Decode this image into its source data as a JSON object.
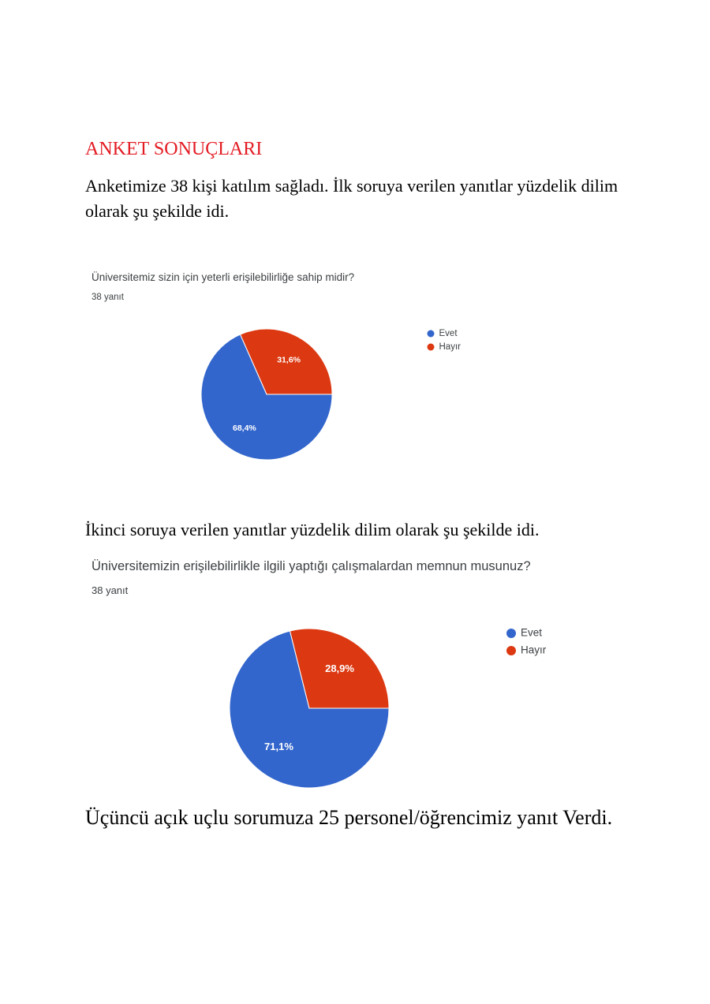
{
  "document": {
    "title": "ANKET SONUÇLARI",
    "title_color": "#e31b23",
    "intro": "Anketimize 38 kişi katılım sağladı. İlk soruya verilen yanıtlar yüzdelik dilim olarak şu şekilde idi.",
    "second_intro": "İkinci soruya verilen yanıtlar yüzdelik dilim olarak şu şekilde idi.",
    "closing": "Üçüncü açık uçlu sorumuza 25 personel/öğrencimiz yanıt Verdi."
  },
  "chart_data": [
    {
      "type": "pie",
      "title": "Üniversitemiz sizin için yeterli erişilebilirliğe sahip midir?",
      "subtitle": "38 yanıt",
      "categories": [
        "Evet",
        "Hayır"
      ],
      "values": [
        68.4,
        31.6
      ],
      "labels": [
        "68,4%",
        "31,6%"
      ],
      "colors": [
        "#3366cc",
        "#dc3912"
      ],
      "legend": "right"
    },
    {
      "type": "pie",
      "title": "Üniversitemizin erişilebilirlikle ilgili yaptığı çalışmalardan memnun musunuz?",
      "subtitle": "38 yanıt",
      "categories": [
        "Evet",
        "Hayır"
      ],
      "values": [
        71.1,
        28.9
      ],
      "labels": [
        "71,1%",
        "28,9%"
      ],
      "colors": [
        "#3366cc",
        "#dc3912"
      ],
      "legend": "right"
    }
  ]
}
